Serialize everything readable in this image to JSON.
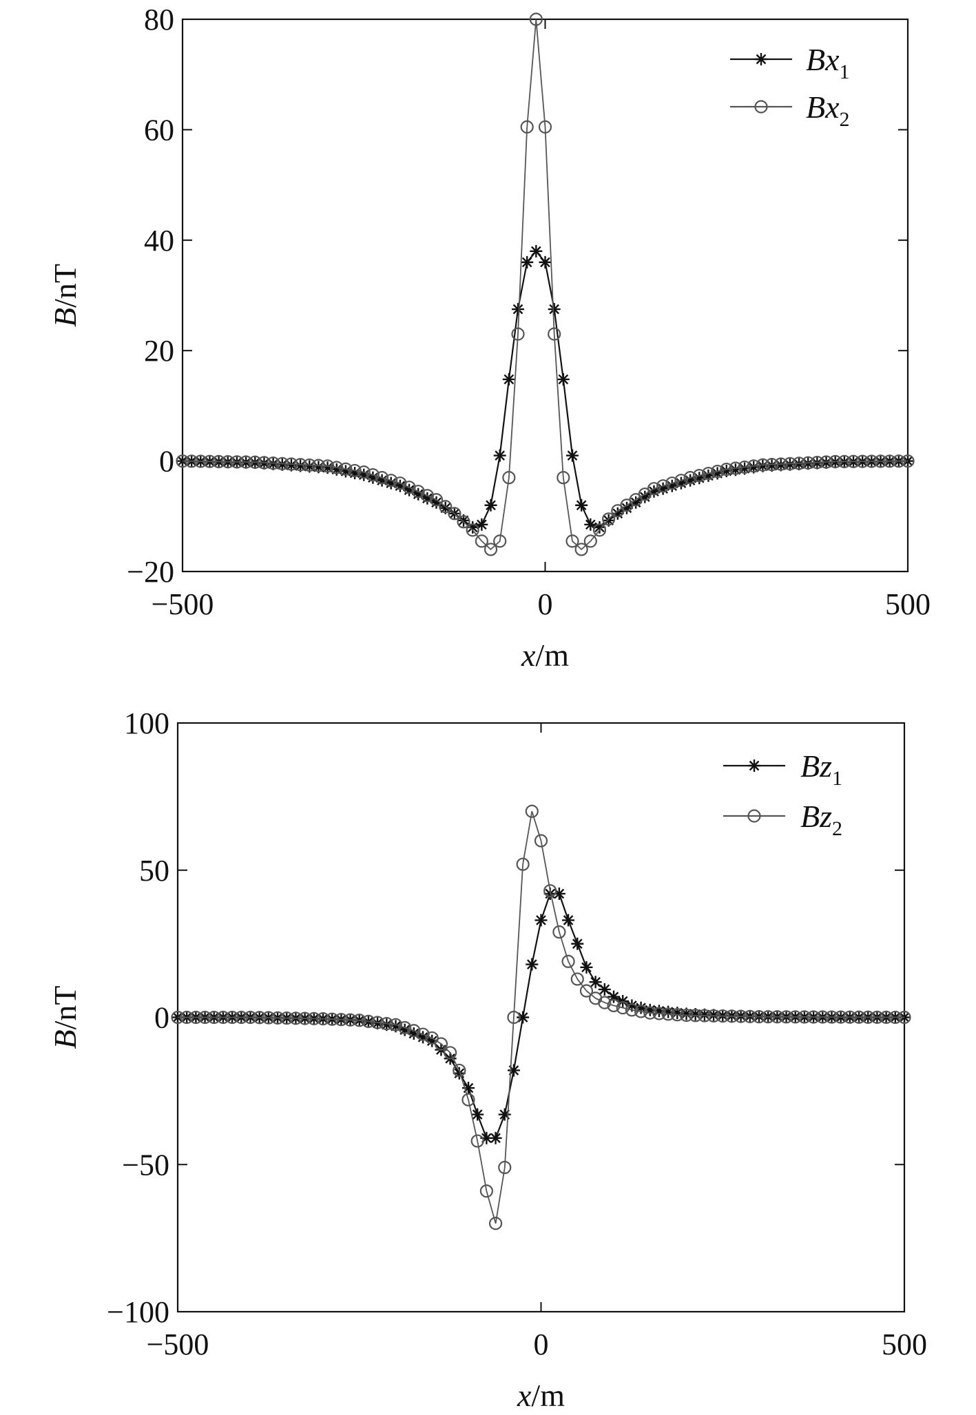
{
  "figure": {
    "sample_step": 12.5,
    "chart_data": [
      {
        "type": "line",
        "id": "top",
        "xlabel_var": "x",
        "xlabel_unit": "/m",
        "ylabel_var": "B",
        "ylabel_unit": "/nT",
        "xlim": [
          -500,
          500
        ],
        "ylim": [
          -20,
          80
        ],
        "xticks": [
          -500,
          0,
          500
        ],
        "xtick_labels": [
          "−500",
          "0",
          "500"
        ],
        "yticks": [
          -20,
          0,
          20,
          40,
          60,
          80
        ],
        "ytick_labels": [
          "−20",
          "0",
          "20",
          "40",
          "60",
          "80"
        ],
        "legend_position": "top-right",
        "series": [
          {
            "name": "Bx1",
            "label_main": "Bx",
            "label_sub": "1",
            "marker": "star",
            "color": "#111111",
            "anchors": [
              [
                -500,
                0
              ],
              [
                -400,
                -0.3
              ],
              [
                -300,
                -1.2
              ],
              [
                -250,
                -2.5
              ],
              [
                -200,
                -4.5
              ],
              [
                -150,
                -7.5
              ],
              [
                -125,
                -9.5
              ],
              [
                -100,
                -12
              ],
              [
                -87.5,
                -11.5
              ],
              [
                -75,
                -8
              ],
              [
                -62.5,
                1
              ],
              [
                -50,
                14.8
              ],
              [
                -37.5,
                27.5
              ],
              [
                -25,
                36
              ],
              [
                -12.5,
                38
              ],
              [
                0,
                36
              ],
              [
                12.5,
                27.5
              ],
              [
                25,
                14.8
              ],
              [
                37.5,
                1
              ],
              [
                50,
                -8
              ],
              [
                62.5,
                -11.5
              ],
              [
                75,
                -12
              ],
              [
                100,
                -9.5
              ],
              [
                125,
                -7.5
              ],
              [
                150,
                -5.5
              ],
              [
                200,
                -3.5
              ],
              [
                250,
                -1.8
              ],
              [
                300,
                -0.9
              ],
              [
                400,
                -0.2
              ],
              [
                500,
                0
              ]
            ]
          },
          {
            "name": "Bx2",
            "label_main": "Bx",
            "label_sub": "2",
            "marker": "circle",
            "color": "#555555",
            "anchors": [
              [
                -500,
                0
              ],
              [
                -400,
                -0.2
              ],
              [
                -300,
                -0.9
              ],
              [
                -250,
                -2
              ],
              [
                -200,
                -4
              ],
              [
                -150,
                -7
              ],
              [
                -125,
                -9.5
              ],
              [
                -100,
                -12.5
              ],
              [
                -87.5,
                -14.5
              ],
              [
                -75,
                -16
              ],
              [
                -62.5,
                -14.5
              ],
              [
                -50,
                -3
              ],
              [
                -37.5,
                23
              ],
              [
                -25,
                60.5
              ],
              [
                -12.5,
                80
              ],
              [
                0,
                60.5
              ],
              [
                12.5,
                23
              ],
              [
                25,
                -3
              ],
              [
                37.5,
                -14.5
              ],
              [
                50,
                -16
              ],
              [
                62.5,
                -14.5
              ],
              [
                75,
                -12.5
              ],
              [
                87.5,
                -10.5
              ],
              [
                100,
                -9
              ],
              [
                125,
                -7
              ],
              [
                150,
                -5
              ],
              [
                200,
                -3
              ],
              [
                250,
                -1.5
              ],
              [
                300,
                -0.7
              ],
              [
                400,
                -0.1
              ],
              [
                500,
                0
              ]
            ]
          }
        ]
      },
      {
        "type": "line",
        "id": "bottom",
        "xlabel_var": "x",
        "xlabel_unit": "/m",
        "ylabel_var": "B",
        "ylabel_unit": "/nT",
        "xlim": [
          -500,
          500
        ],
        "ylim": [
          -100,
          100
        ],
        "xticks": [
          -500,
          0,
          500
        ],
        "xtick_labels": [
          "−500",
          "0",
          "500"
        ],
        "yticks": [
          -100,
          -50,
          0,
          50,
          100
        ],
        "ytick_labels": [
          "−100",
          "−50",
          "0",
          "50",
          "100"
        ],
        "legend_position": "top-right",
        "series": [
          {
            "name": "Bz1",
            "label_main": "Bz",
            "label_sub": "1",
            "marker": "star",
            "color": "#111111",
            "anchors": [
              [
                -500,
                0
              ],
              [
                -400,
                0
              ],
              [
                -300,
                -0.5
              ],
              [
                -250,
                -1
              ],
              [
                -200,
                -3
              ],
              [
                -150,
                -8
              ],
              [
                -125,
                -14
              ],
              [
                -100,
                -24
              ],
              [
                -87.5,
                -33
              ],
              [
                -75,
                -41
              ],
              [
                -62.5,
                -41
              ],
              [
                -50,
                -33
              ],
              [
                -37.5,
                -18
              ],
              [
                -25,
                0
              ],
              [
                -12.5,
                18
              ],
              [
                0,
                33
              ],
              [
                12.5,
                42
              ],
              [
                25,
                42
              ],
              [
                37.5,
                33
              ],
              [
                50,
                25
              ],
              [
                62.5,
                17
              ],
              [
                75,
                12
              ],
              [
                100,
                7
              ],
              [
                125,
                4
              ],
              [
                150,
                2.5
              ],
              [
                200,
                1.2
              ],
              [
                250,
                0.6
              ],
              [
                300,
                0.3
              ],
              [
                400,
                0
              ],
              [
                500,
                0
              ]
            ]
          },
          {
            "name": "Bz2",
            "label_main": "Bz",
            "label_sub": "2",
            "marker": "circle",
            "color": "#555555",
            "anchors": [
              [
                -500,
                0
              ],
              [
                -400,
                0
              ],
              [
                -300,
                -0.5
              ],
              [
                -250,
                -1
              ],
              [
                -200,
                -2.5
              ],
              [
                -175,
                -4.5
              ],
              [
                -150,
                -7
              ],
              [
                -137.5,
                -9
              ],
              [
                -125,
                -12
              ],
              [
                -112.5,
                -18
              ],
              [
                -100,
                -28
              ],
              [
                -87.5,
                -42
              ],
              [
                -75,
                -59
              ],
              [
                -62.5,
                -70
              ],
              [
                -50,
                -51
              ],
              [
                -37.5,
                0
              ],
              [
                -25,
                52
              ],
              [
                -12.5,
                70
              ],
              [
                0,
                60
              ],
              [
                12.5,
                43
              ],
              [
                25,
                29
              ],
              [
                37.5,
                19
              ],
              [
                50,
                13
              ],
              [
                62.5,
                9
              ],
              [
                75,
                6.5
              ],
              [
                87.5,
                5
              ],
              [
                100,
                4
              ],
              [
                125,
                2.5
              ],
              [
                150,
                1.5
              ],
              [
                200,
                0.7
              ],
              [
                300,
                0.2
              ],
              [
                500,
                0
              ]
            ]
          }
        ]
      }
    ]
  }
}
